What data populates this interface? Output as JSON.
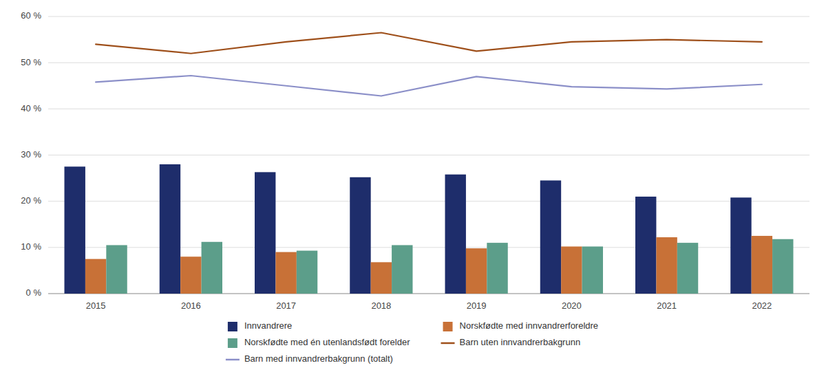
{
  "chart_data": {
    "type": "bar",
    "categories": [
      "2015",
      "2016",
      "2017",
      "2018",
      "2019",
      "2020",
      "2021",
      "2022"
    ],
    "series": [
      {
        "name": "Innvandrere",
        "type": "bar",
        "color": "#1e2d6b",
        "values": [
          27.5,
          28.0,
          26.3,
          25.2,
          25.8,
          24.5,
          21.0,
          20.8
        ]
      },
      {
        "name": "Norskfødte med innvandrerforeldre",
        "type": "bar",
        "color": "#c87137",
        "values": [
          7.5,
          8.0,
          9.0,
          6.8,
          9.8,
          10.2,
          12.2,
          12.5
        ]
      },
      {
        "name": "Norskfødte med én utenlandsfødt forelder",
        "type": "bar",
        "color": "#5c9e8a",
        "values": [
          10.5,
          11.2,
          9.3,
          10.5,
          11.0,
          10.2,
          11.0,
          11.8
        ]
      },
      {
        "name": "Barn uten innvandrerbakgrunn",
        "type": "line",
        "color": "#9e4f1a",
        "values": [
          54.0,
          52.0,
          54.5,
          56.5,
          52.5,
          54.5,
          55.0,
          54.5
        ]
      },
      {
        "name": "Barn med innvandrerbakgrunn (totalt)",
        "type": "line",
        "color": "#8b8fc8",
        "values": [
          45.8,
          47.2,
          45.0,
          42.8,
          47.0,
          44.8,
          44.3,
          45.3
        ]
      }
    ],
    "ylim": [
      0,
      60
    ],
    "yticks": [
      {
        "value": 0,
        "label": "0 %"
      },
      {
        "value": 10,
        "label": "10 %"
      },
      {
        "value": 20,
        "label": "20 %"
      },
      {
        "value": 30,
        "label": "30 %"
      },
      {
        "value": 40,
        "label": "40 %"
      },
      {
        "value": 50,
        "label": "50 %"
      },
      {
        "value": 60,
        "label": "60 %"
      }
    ],
    "grid": true,
    "legend": "bottom"
  }
}
